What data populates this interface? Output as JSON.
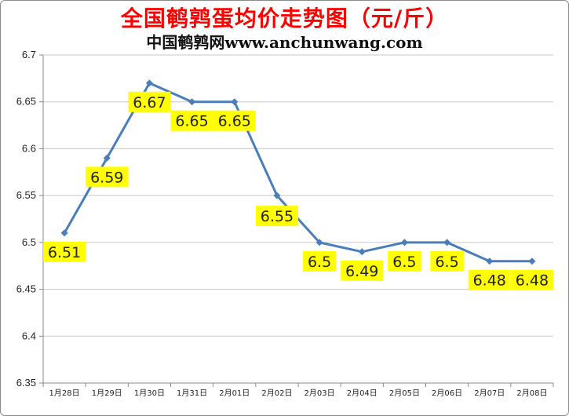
{
  "title": "全国鹌鹑蛋均价走势图（元/斤）",
  "subtitle": "中国鹌鹑网www.anchunwang.com",
  "colors": {
    "title": "#ff0000",
    "line": "#4a7ebb",
    "label_background": "#ffff00",
    "grid": "#c8c8c8"
  },
  "chart_data": {
    "type": "line",
    "categories": [
      "1月28日",
      "1月29日",
      "1月30日",
      "1月31日",
      "2月01日",
      "2月02日",
      "2月03日",
      "2月04日",
      "2月05日",
      "2月06日",
      "2月07日",
      "2月08日"
    ],
    "series": [
      {
        "values": [
          6.51,
          6.59,
          6.67,
          6.65,
          6.65,
          6.55,
          6.5,
          6.49,
          6.5,
          6.5,
          6.48,
          6.48
        ]
      }
    ],
    "data_labels": [
      "6.51",
      "6.59",
      "6.67",
      "6.65",
      "6.65",
      "6.55",
      "6.5",
      "6.49",
      "6.5",
      "6.5",
      "6.48",
      "6.48"
    ],
    "yticks": [
      "6.35",
      "6.4",
      "6.45",
      "6.5",
      "6.55",
      "6.6",
      "6.65",
      "6.7"
    ],
    "ylim": [
      6.35,
      6.7
    ],
    "grid": true,
    "marker": "diamond",
    "legend": "none"
  }
}
